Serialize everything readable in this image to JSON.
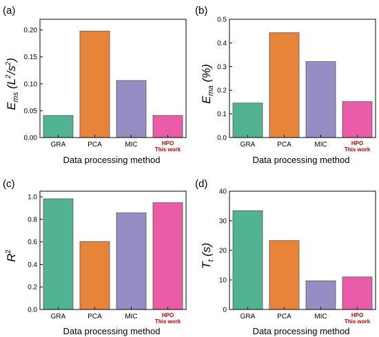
{
  "chart_data": [
    {
      "type": "bar",
      "panel_label": "(a)",
      "ylabel_main": "E",
      "ylabel_sub": "ms",
      "ylabel_rest": " (L",
      "ylabel_sup1": "2",
      "ylabel_mid": "/s",
      "ylabel_sup2": "2",
      "ylabel_end": ")",
      "xlabel": "Data processing method",
      "categories": [
        "GRA",
        "PCA",
        "MIC",
        "HPO"
      ],
      "highlight_sublabel": "This work",
      "values": [
        0.041,
        0.198,
        0.106,
        0.041
      ],
      "ylim": [
        0,
        0.22
      ],
      "yticks": [
        "0.00",
        "0.05",
        "0.10",
        "0.15",
        "0.20"
      ],
      "ytick_values": [
        0,
        0.05,
        0.1,
        0.15,
        0.2
      ]
    },
    {
      "type": "bar",
      "panel_label": "(b)",
      "ylabel_main": "E",
      "ylabel_sub": "ma",
      "ylabel_rest": " (%)",
      "xlabel": "Data processing method",
      "categories": [
        "GRA",
        "PCA",
        "MIC",
        "HPO"
      ],
      "highlight_sublabel": "This work",
      "values": [
        0.146,
        0.443,
        0.321,
        0.152
      ],
      "ylim": [
        0,
        0.5
      ],
      "yticks": [
        "0.0",
        "0.1",
        "0.2",
        "0.3",
        "0.4",
        "0.5"
      ],
      "ytick_values": [
        0,
        0.1,
        0.2,
        0.3,
        0.4,
        0.5
      ]
    },
    {
      "type": "bar",
      "panel_label": "(c)",
      "ylabel_main": "R",
      "ylabel_sup1": "2",
      "xlabel": "Data processing method",
      "categories": [
        "GRA",
        "PCA",
        "MIC",
        "HPO"
      ],
      "highlight_sublabel": "This work",
      "values": [
        0.983,
        0.603,
        0.858,
        0.948
      ],
      "ylim": [
        0,
        1.05
      ],
      "yticks": [
        "0.0",
        "0.2",
        "0.4",
        "0.6",
        "0.8",
        "1.0"
      ],
      "ytick_values": [
        0,
        0.2,
        0.4,
        0.6,
        0.8,
        1.0
      ]
    },
    {
      "type": "bar",
      "panel_label": "(d)",
      "ylabel_main": "T",
      "ylabel_sub": "t",
      "ylabel_rest": " (s)",
      "xlabel": "Data processing method",
      "categories": [
        "GRA",
        "PCA",
        "MIC",
        "HPO"
      ],
      "highlight_sublabel": "This work",
      "values": [
        33.4,
        23.3,
        9.7,
        11.0
      ],
      "ylim": [
        0,
        40
      ],
      "yticks": [
        "0",
        "10",
        "20",
        "30",
        "40"
      ],
      "ytick_values": [
        0,
        10,
        20,
        30,
        40
      ]
    }
  ],
  "colors": {
    "bars": [
      "#52b394",
      "#e8843a",
      "#968dc4",
      "#ea5ca5"
    ],
    "highlight_text": "#c00000"
  }
}
